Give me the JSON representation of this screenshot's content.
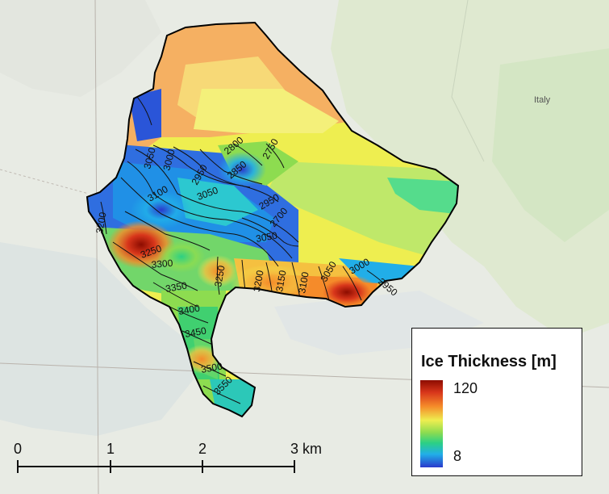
{
  "map": {
    "country_label": "Italy",
    "contour_labels": [
      "2800",
      "2750",
      "3050",
      "3000",
      "2950",
      "2850",
      "3100",
      "3050",
      "2950",
      "2700",
      "3050",
      "3250",
      "3300",
      "3350",
      "3400",
      "3450",
      "3500",
      "3550",
      "3250",
      "3200",
      "3150",
      "3100",
      "3050",
      "3000",
      "2950",
      "3200"
    ],
    "colors": {
      "low": "#2a39cc",
      "mid": "#eeee50",
      "high": "#8c0c00",
      "outline": "#000000"
    }
  },
  "legend": {
    "title": "Ice Thickness [m]",
    "max": "120",
    "min": "8"
  },
  "scale_bar": {
    "labels": [
      "0",
      "1",
      "2",
      "3 km"
    ]
  }
}
